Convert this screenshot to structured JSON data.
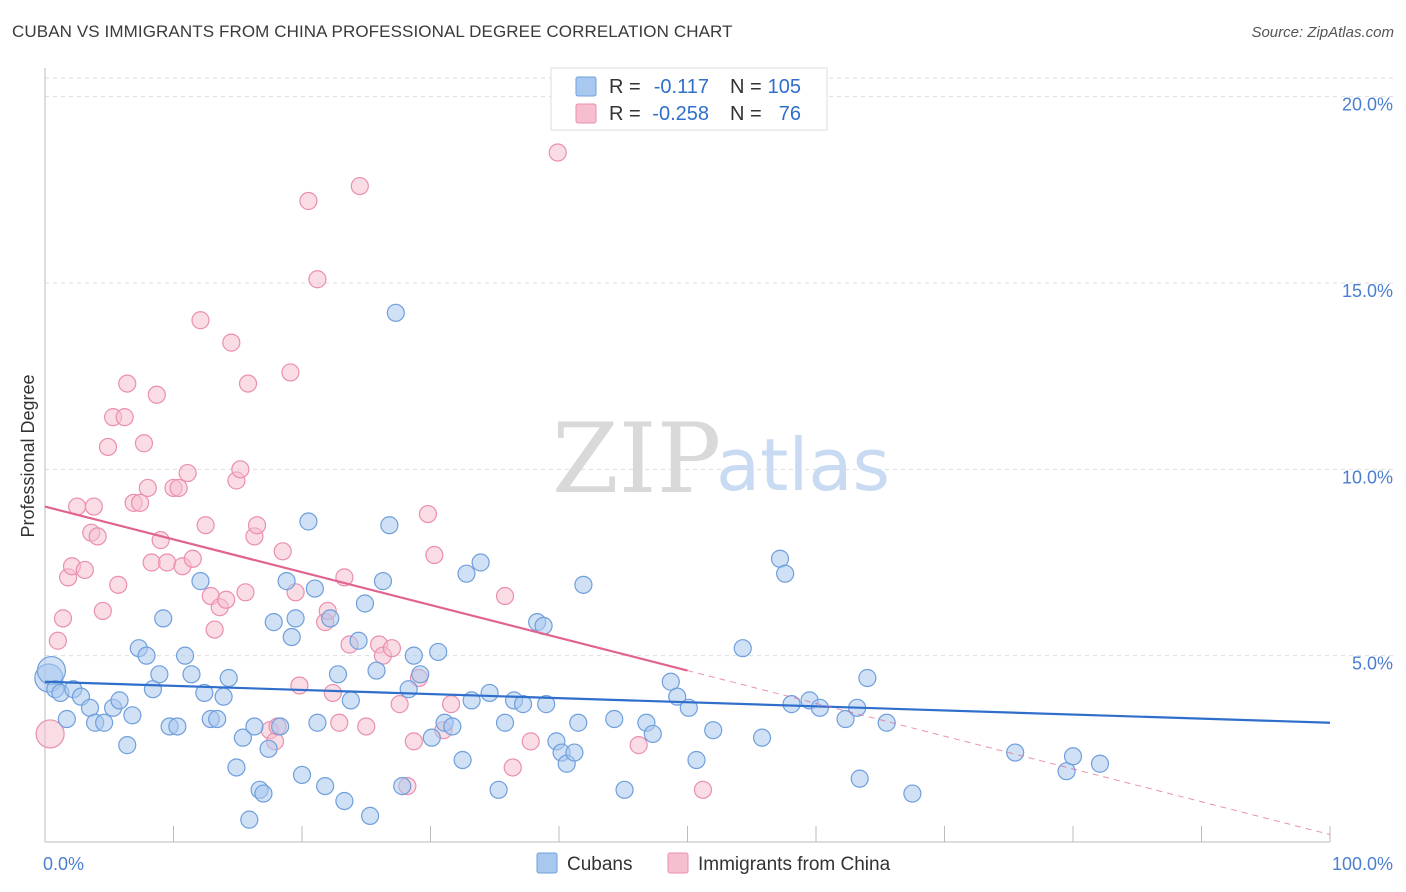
{
  "title": "CUBAN VS IMMIGRANTS FROM CHINA PROFESSIONAL DEGREE CORRELATION CHART",
  "source": "Source: ZipAtlas.com",
  "watermark": {
    "zip": "ZIP",
    "atlas": "atlas"
  },
  "colors": {
    "cubans_fill": "#a9c8ef",
    "cubans_stroke": "#6f9fdc",
    "cubans_line": "#2f6fcb",
    "china_fill": "#f6bfd0",
    "china_stroke": "#ea8fae",
    "china_line": "#e0648f",
    "grid": "#dddddd",
    "axis": "#bbbbbb",
    "tick_text": "#4a7fd0"
  },
  "legend": {
    "rows": [
      {
        "r_label": "R = ",
        "r_value": "-0.117",
        "n_label": "N = ",
        "n_value": "105"
      },
      {
        "r_label": "R = ",
        "r_value": "-0.258",
        "n_label": "N = ",
        "n_value": "76"
      }
    ]
  },
  "chart_data": {
    "type": "scatter",
    "title": "CUBAN VS IMMIGRANTS FROM CHINA PROFESSIONAL DEGREE CORRELATION CHART",
    "xlabel": "",
    "ylabel": "Professional Degree",
    "xlim": [
      0,
      100
    ],
    "ylim": [
      0,
      20.5
    ],
    "x_tick_labels": [
      "0.0%",
      "100.0%"
    ],
    "y_ticks": [
      5,
      10,
      15,
      20
    ],
    "y_tick_labels": [
      "5.0%",
      "10.0%",
      "15.0%",
      "20.0%"
    ],
    "grid": true,
    "legend_placement": "top-center",
    "series": [
      {
        "name": "Cubans",
        "r": -0.117,
        "n": 105,
        "trend": {
          "x": [
            0,
            100
          ],
          "y": [
            4.3,
            3.2
          ]
        },
        "points": [
          [
            0.3,
            4.4,
            1
          ],
          [
            0.5,
            4.6,
            1
          ],
          [
            0.8,
            4.1,
            0
          ],
          [
            1.2,
            4.0,
            0
          ],
          [
            1.7,
            3.3,
            0
          ],
          [
            2.2,
            4.1,
            0
          ],
          [
            2.8,
            3.9,
            0
          ],
          [
            3.5,
            3.6,
            0
          ],
          [
            3.9,
            3.2,
            0
          ],
          [
            4.6,
            3.2,
            0
          ],
          [
            5.3,
            3.6,
            0
          ],
          [
            5.8,
            3.8,
            0
          ],
          [
            6.4,
            2.6,
            0
          ],
          [
            6.8,
            3.4,
            0
          ],
          [
            7.3,
            5.2,
            0
          ],
          [
            7.9,
            5.0,
            0
          ],
          [
            8.4,
            4.1,
            0
          ],
          [
            8.9,
            4.5,
            0
          ],
          [
            9.2,
            6.0,
            0
          ],
          [
            9.7,
            3.1,
            0
          ],
          [
            10.3,
            3.1,
            0
          ],
          [
            10.9,
            5.0,
            0
          ],
          [
            11.4,
            4.5,
            0
          ],
          [
            12.1,
            7.0,
            0
          ],
          [
            12.4,
            4.0,
            0
          ],
          [
            12.9,
            3.3,
            0
          ],
          [
            13.4,
            3.3,
            0
          ],
          [
            13.9,
            3.9,
            0
          ],
          [
            14.3,
            4.4,
            0
          ],
          [
            14.9,
            2.0,
            0
          ],
          [
            15.4,
            2.8,
            0
          ],
          [
            15.9,
            0.6,
            0
          ],
          [
            16.3,
            3.1,
            0
          ],
          [
            16.7,
            1.4,
            0
          ],
          [
            17.0,
            1.3,
            0
          ],
          [
            17.4,
            2.5,
            0
          ],
          [
            17.8,
            5.9,
            0
          ],
          [
            18.3,
            3.1,
            0
          ],
          [
            18.8,
            7.0,
            0
          ],
          [
            19.2,
            5.5,
            0
          ],
          [
            19.5,
            6.0,
            0
          ],
          [
            20.0,
            1.8,
            0
          ],
          [
            20.5,
            8.6,
            0
          ],
          [
            21.0,
            6.8,
            0
          ],
          [
            21.2,
            3.2,
            0
          ],
          [
            21.8,
            1.5,
            0
          ],
          [
            22.2,
            6.0,
            0
          ],
          [
            22.8,
            4.5,
            0
          ],
          [
            23.3,
            1.1,
            0
          ],
          [
            23.8,
            3.8,
            0
          ],
          [
            24.4,
            5.4,
            0
          ],
          [
            24.9,
            6.4,
            0
          ],
          [
            25.3,
            0.7,
            0
          ],
          [
            25.8,
            4.6,
            0
          ],
          [
            26.3,
            7.0,
            0
          ],
          [
            26.8,
            8.5,
            0
          ],
          [
            27.3,
            14.2,
            0
          ],
          [
            27.8,
            1.5,
            0
          ],
          [
            28.3,
            4.1,
            0
          ],
          [
            28.7,
            5.0,
            0
          ],
          [
            29.2,
            4.5,
            0
          ],
          [
            30.1,
            2.8,
            0
          ],
          [
            30.6,
            5.1,
            0
          ],
          [
            31.1,
            3.2,
            0
          ],
          [
            31.7,
            3.1,
            0
          ],
          [
            32.5,
            2.2,
            0
          ],
          [
            32.8,
            7.2,
            0
          ],
          [
            33.2,
            3.8,
            0
          ],
          [
            33.9,
            7.5,
            0
          ],
          [
            34.6,
            4.0,
            0
          ],
          [
            35.3,
            1.4,
            0
          ],
          [
            35.8,
            3.2,
            0
          ],
          [
            36.5,
            3.8,
            0
          ],
          [
            37.2,
            3.7,
            0
          ],
          [
            38.3,
            5.9,
            0
          ],
          [
            38.8,
            5.8,
            0
          ],
          [
            39.0,
            3.7,
            0
          ],
          [
            39.8,
            2.7,
            0
          ],
          [
            40.2,
            2.4,
            0
          ],
          [
            40.6,
            2.1,
            0
          ],
          [
            41.2,
            2.4,
            0
          ],
          [
            41.5,
            3.2,
            0
          ],
          [
            41.9,
            6.9,
            0
          ],
          [
            44.3,
            3.3,
            0
          ],
          [
            45.1,
            1.4,
            0
          ],
          [
            46.8,
            3.2,
            0
          ],
          [
            47.3,
            2.9,
            0
          ],
          [
            48.7,
            4.3,
            0
          ],
          [
            49.2,
            3.9,
            0
          ],
          [
            50.1,
            3.6,
            0
          ],
          [
            50.7,
            2.2,
            0
          ],
          [
            52.0,
            3.0,
            0
          ],
          [
            54.3,
            5.2,
            0
          ],
          [
            55.8,
            2.8,
            0
          ],
          [
            57.2,
            7.6,
            0
          ],
          [
            57.6,
            7.2,
            0
          ],
          [
            58.1,
            3.7,
            0
          ],
          [
            59.5,
            3.8,
            0
          ],
          [
            60.3,
            3.6,
            0
          ],
          [
            62.3,
            3.3,
            0
          ],
          [
            63.2,
            3.6,
            0
          ],
          [
            63.4,
            1.7,
            0
          ],
          [
            64.0,
            4.4,
            0
          ],
          [
            65.5,
            3.2,
            0
          ],
          [
            67.5,
            1.3,
            0
          ],
          [
            75.5,
            2.4,
            0
          ],
          [
            79.5,
            1.9,
            0
          ],
          [
            80.0,
            2.3,
            0
          ],
          [
            82.1,
            2.1,
            0
          ]
        ]
      },
      {
        "name": "Immigrants from China",
        "r": -0.258,
        "n": 76,
        "trend": {
          "x": [
            0,
            50
          ],
          "y": [
            9.0,
            4.6
          ]
        },
        "trend_dashed": {
          "x": [
            50,
            100
          ],
          "y": [
            4.6,
            0.2
          ]
        },
        "points": [
          [
            0.4,
            2.9,
            1
          ],
          [
            1.0,
            5.4,
            0
          ],
          [
            1.4,
            6.0,
            0
          ],
          [
            1.8,
            7.1,
            0
          ],
          [
            2.1,
            7.4,
            0
          ],
          [
            2.5,
            9.0,
            0
          ],
          [
            3.1,
            7.3,
            0
          ],
          [
            3.6,
            8.3,
            0
          ],
          [
            3.8,
            9.0,
            0
          ],
          [
            4.1,
            8.2,
            0
          ],
          [
            4.5,
            6.2,
            0
          ],
          [
            4.9,
            10.6,
            0
          ],
          [
            5.3,
            11.4,
            0
          ],
          [
            5.7,
            6.9,
            0
          ],
          [
            6.2,
            11.4,
            0
          ],
          [
            6.4,
            12.3,
            0
          ],
          [
            6.9,
            9.1,
            0
          ],
          [
            7.4,
            9.1,
            0
          ],
          [
            7.7,
            10.7,
            0
          ],
          [
            8.0,
            9.5,
            0
          ],
          [
            8.3,
            7.5,
            0
          ],
          [
            8.7,
            12.0,
            0
          ],
          [
            9.0,
            8.1,
            0
          ],
          [
            9.5,
            7.5,
            0
          ],
          [
            10.0,
            9.5,
            0
          ],
          [
            10.4,
            9.5,
            0
          ],
          [
            10.7,
            7.4,
            0
          ],
          [
            11.1,
            9.9,
            0
          ],
          [
            11.5,
            7.6,
            0
          ],
          [
            12.1,
            14.0,
            0
          ],
          [
            12.5,
            8.5,
            0
          ],
          [
            12.9,
            6.6,
            0
          ],
          [
            13.2,
            5.7,
            0
          ],
          [
            13.6,
            6.3,
            0
          ],
          [
            14.1,
            6.5,
            0
          ],
          [
            14.5,
            13.4,
            0
          ],
          [
            14.9,
            9.7,
            0
          ],
          [
            15.2,
            10.0,
            0
          ],
          [
            15.6,
            6.7,
            0
          ],
          [
            15.8,
            12.3,
            0
          ],
          [
            16.3,
            8.2,
            0
          ],
          [
            16.5,
            8.5,
            0
          ],
          [
            17.5,
            3.0,
            0
          ],
          [
            17.9,
            2.7,
            0
          ],
          [
            18.1,
            3.1,
            0
          ],
          [
            18.5,
            7.8,
            0
          ],
          [
            19.1,
            12.6,
            0
          ],
          [
            19.5,
            6.7,
            0
          ],
          [
            19.8,
            4.2,
            0
          ],
          [
            20.5,
            17.2,
            0
          ],
          [
            21.2,
            15.1,
            0
          ],
          [
            21.8,
            5.9,
            0
          ],
          [
            22.0,
            6.2,
            0
          ],
          [
            22.4,
            4.0,
            0
          ],
          [
            22.9,
            3.2,
            0
          ],
          [
            23.3,
            7.1,
            0
          ],
          [
            23.7,
            5.3,
            0
          ],
          [
            24.5,
            17.6,
            0
          ],
          [
            25.0,
            3.1,
            0
          ],
          [
            26.0,
            5.3,
            0
          ],
          [
            26.3,
            5.0,
            0
          ],
          [
            27.0,
            5.2,
            0
          ],
          [
            27.6,
            3.7,
            0
          ],
          [
            28.2,
            1.5,
            0
          ],
          [
            28.7,
            2.7,
            0
          ],
          [
            29.1,
            4.4,
            0
          ],
          [
            29.8,
            8.8,
            0
          ],
          [
            30.3,
            7.7,
            0
          ],
          [
            31.0,
            3.0,
            0
          ],
          [
            31.6,
            3.7,
            0
          ],
          [
            35.8,
            6.6,
            0
          ],
          [
            36.4,
            2.0,
            0
          ],
          [
            37.8,
            2.7,
            0
          ],
          [
            39.9,
            18.5,
            0
          ],
          [
            46.2,
            2.6,
            0
          ],
          [
            51.2,
            1.4,
            0
          ]
        ]
      }
    ]
  },
  "bottom_legend": {
    "items": [
      "Cubans",
      "Immigrants from China"
    ]
  }
}
